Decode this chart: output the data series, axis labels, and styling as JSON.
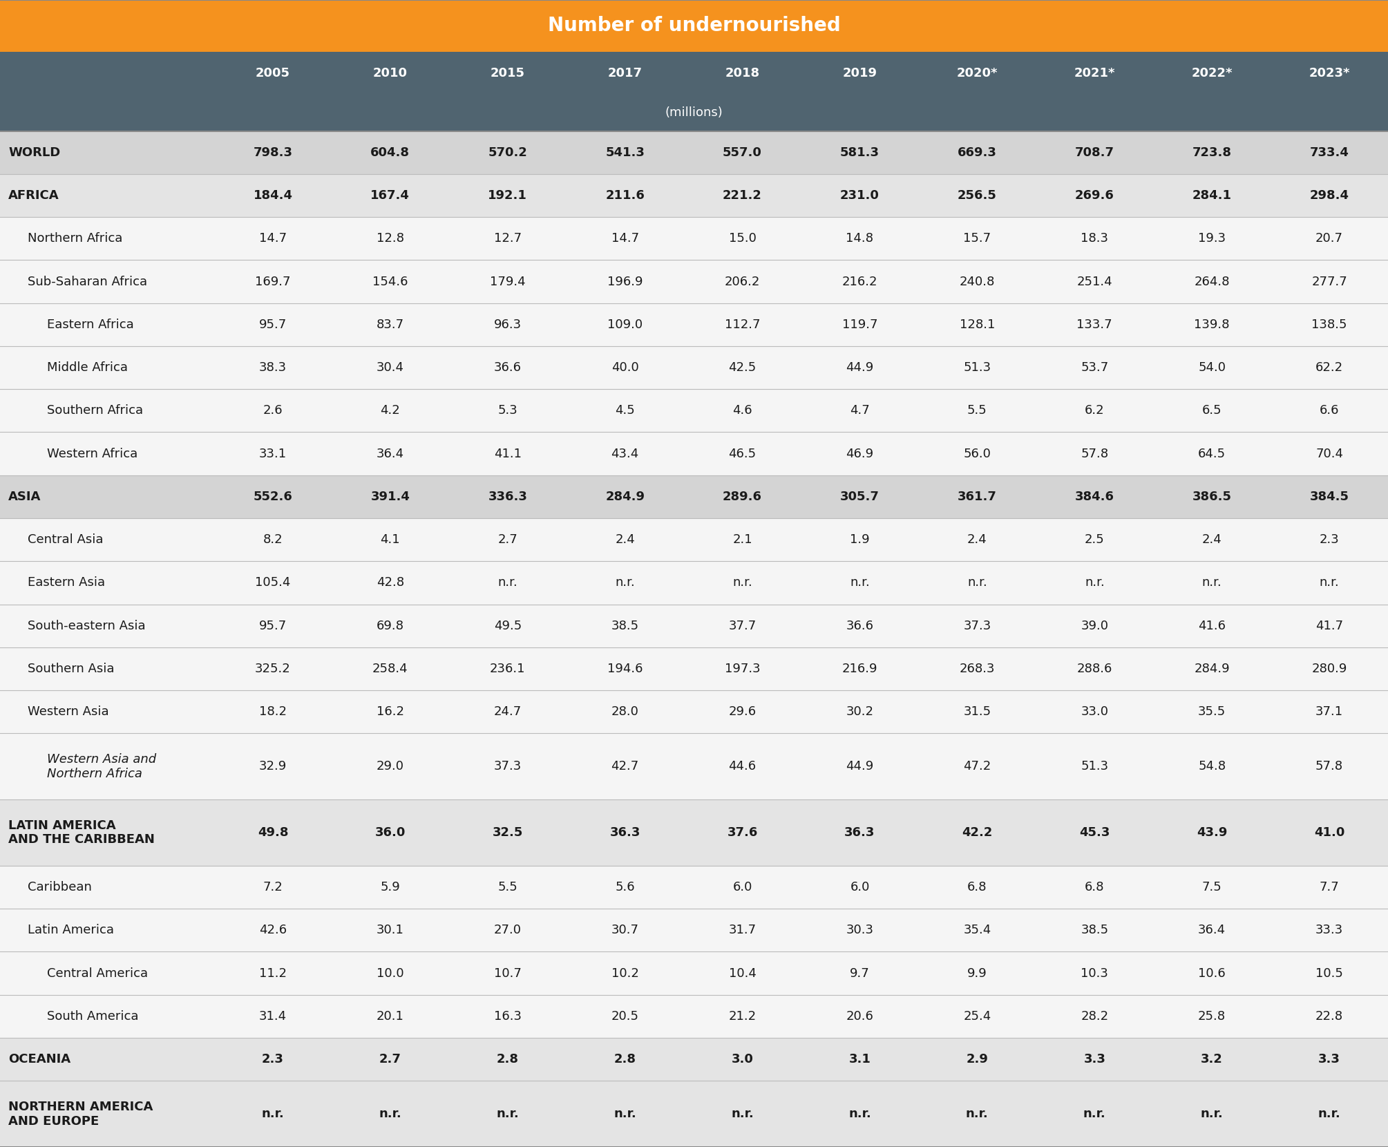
{
  "title": "Number of undernourished",
  "title_bg": "#F5921E",
  "title_color": "#FFFFFF",
  "header_bg": "#506470",
  "header_color": "#FFFFFF",
  "years": [
    "2005",
    "2010",
    "2015",
    "2017",
    "2018",
    "2019",
    "2020*",
    "2021*",
    "2022*",
    "2023*"
  ],
  "units_label": "(millions)",
  "rows": [
    {
      "label": "WORLD",
      "indent": 0,
      "bold": true,
      "italic": false,
      "row_bg": "#D4D4D4",
      "values": [
        "798.3",
        "604.8",
        "570.2",
        "541.3",
        "557.0",
        "581.3",
        "669.3",
        "708.7",
        "723.8",
        "733.4"
      ]
    },
    {
      "label": "AFRICA",
      "indent": 0,
      "bold": true,
      "italic": false,
      "row_bg": "#E4E4E4",
      "values": [
        "184.4",
        "167.4",
        "192.1",
        "211.6",
        "221.2",
        "231.0",
        "256.5",
        "269.6",
        "284.1",
        "298.4"
      ]
    },
    {
      "label": "Northern Africa",
      "indent": 1,
      "bold": false,
      "italic": false,
      "row_bg": "#F5F5F5",
      "values": [
        "14.7",
        "12.8",
        "12.7",
        "14.7",
        "15.0",
        "14.8",
        "15.7",
        "18.3",
        "19.3",
        "20.7"
      ]
    },
    {
      "label": "Sub-Saharan Africa",
      "indent": 1,
      "bold": false,
      "italic": false,
      "row_bg": "#F5F5F5",
      "values": [
        "169.7",
        "154.6",
        "179.4",
        "196.9",
        "206.2",
        "216.2",
        "240.8",
        "251.4",
        "264.8",
        "277.7"
      ]
    },
    {
      "label": "Eastern Africa",
      "indent": 2,
      "bold": false,
      "italic": false,
      "row_bg": "#F5F5F5",
      "values": [
        "95.7",
        "83.7",
        "96.3",
        "109.0",
        "112.7",
        "119.7",
        "128.1",
        "133.7",
        "139.8",
        "138.5"
      ]
    },
    {
      "label": "Middle Africa",
      "indent": 2,
      "bold": false,
      "italic": false,
      "row_bg": "#F5F5F5",
      "values": [
        "38.3",
        "30.4",
        "36.6",
        "40.0",
        "42.5",
        "44.9",
        "51.3",
        "53.7",
        "54.0",
        "62.2"
      ]
    },
    {
      "label": "Southern Africa",
      "indent": 2,
      "bold": false,
      "italic": false,
      "row_bg": "#F5F5F5",
      "values": [
        "2.6",
        "4.2",
        "5.3",
        "4.5",
        "4.6",
        "4.7",
        "5.5",
        "6.2",
        "6.5",
        "6.6"
      ]
    },
    {
      "label": "Western Africa",
      "indent": 2,
      "bold": false,
      "italic": false,
      "row_bg": "#F5F5F5",
      "values": [
        "33.1",
        "36.4",
        "41.1",
        "43.4",
        "46.5",
        "46.9",
        "56.0",
        "57.8",
        "64.5",
        "70.4"
      ]
    },
    {
      "label": "ASIA",
      "indent": 0,
      "bold": true,
      "italic": false,
      "row_bg": "#D4D4D4",
      "values": [
        "552.6",
        "391.4",
        "336.3",
        "284.9",
        "289.6",
        "305.7",
        "361.7",
        "384.6",
        "386.5",
        "384.5"
      ]
    },
    {
      "label": "Central Asia",
      "indent": 1,
      "bold": false,
      "italic": false,
      "row_bg": "#F5F5F5",
      "values": [
        "8.2",
        "4.1",
        "2.7",
        "2.4",
        "2.1",
        "1.9",
        "2.4",
        "2.5",
        "2.4",
        "2.3"
      ]
    },
    {
      "label": "Eastern Asia",
      "indent": 1,
      "bold": false,
      "italic": false,
      "row_bg": "#F5F5F5",
      "values": [
        "105.4",
        "42.8",
        "n.r.",
        "n.r.",
        "n.r.",
        "n.r.",
        "n.r.",
        "n.r.",
        "n.r.",
        "n.r."
      ]
    },
    {
      "label": "South-eastern Asia",
      "indent": 1,
      "bold": false,
      "italic": false,
      "row_bg": "#F5F5F5",
      "values": [
        "95.7",
        "69.8",
        "49.5",
        "38.5",
        "37.7",
        "36.6",
        "37.3",
        "39.0",
        "41.6",
        "41.7"
      ]
    },
    {
      "label": "Southern Asia",
      "indent": 1,
      "bold": false,
      "italic": false,
      "row_bg": "#F5F5F5",
      "values": [
        "325.2",
        "258.4",
        "236.1",
        "194.6",
        "197.3",
        "216.9",
        "268.3",
        "288.6",
        "284.9",
        "280.9"
      ]
    },
    {
      "label": "Western Asia",
      "indent": 1,
      "bold": false,
      "italic": false,
      "row_bg": "#F5F5F5",
      "values": [
        "18.2",
        "16.2",
        "24.7",
        "28.0",
        "29.6",
        "30.2",
        "31.5",
        "33.0",
        "35.5",
        "37.1"
      ]
    },
    {
      "label": "Western Asia and\nNorthern Africa",
      "indent": 2,
      "bold": false,
      "italic": true,
      "row_bg": "#F5F5F5",
      "double_line": true,
      "values": [
        "32.9",
        "29.0",
        "37.3",
        "42.7",
        "44.6",
        "44.9",
        "47.2",
        "51.3",
        "54.8",
        "57.8"
      ]
    },
    {
      "label": "LATIN AMERICA\nAND THE CARIBBEAN",
      "indent": 0,
      "bold": true,
      "italic": false,
      "row_bg": "#E4E4E4",
      "double_line": true,
      "values": [
        "49.8",
        "36.0",
        "32.5",
        "36.3",
        "37.6",
        "36.3",
        "42.2",
        "45.3",
        "43.9",
        "41.0"
      ]
    },
    {
      "label": "Caribbean",
      "indent": 1,
      "bold": false,
      "italic": false,
      "row_bg": "#F5F5F5",
      "values": [
        "7.2",
        "5.9",
        "5.5",
        "5.6",
        "6.0",
        "6.0",
        "6.8",
        "6.8",
        "7.5",
        "7.7"
      ]
    },
    {
      "label": "Latin America",
      "indent": 1,
      "bold": false,
      "italic": false,
      "row_bg": "#F5F5F5",
      "values": [
        "42.6",
        "30.1",
        "27.0",
        "30.7",
        "31.7",
        "30.3",
        "35.4",
        "38.5",
        "36.4",
        "33.3"
      ]
    },
    {
      "label": "Central America",
      "indent": 2,
      "bold": false,
      "italic": false,
      "row_bg": "#F5F5F5",
      "values": [
        "11.2",
        "10.0",
        "10.7",
        "10.2",
        "10.4",
        "9.7",
        "9.9",
        "10.3",
        "10.6",
        "10.5"
      ]
    },
    {
      "label": "South America",
      "indent": 2,
      "bold": false,
      "italic": false,
      "row_bg": "#F5F5F5",
      "values": [
        "31.4",
        "20.1",
        "16.3",
        "20.5",
        "21.2",
        "20.6",
        "25.4",
        "28.2",
        "25.8",
        "22.8"
      ]
    },
    {
      "label": "OCEANIA",
      "indent": 0,
      "bold": true,
      "italic": false,
      "row_bg": "#E4E4E4",
      "values": [
        "2.3",
        "2.7",
        "2.8",
        "2.8",
        "3.0",
        "3.1",
        "2.9",
        "3.3",
        "3.2",
        "3.3"
      ]
    },
    {
      "label": "NORTHERN AMERICA\nAND EUROPE",
      "indent": 0,
      "bold": true,
      "italic": false,
      "row_bg": "#E4E4E4",
      "double_line": true,
      "values": [
        "n.r.",
        "n.r.",
        "n.r.",
        "n.r.",
        "n.r.",
        "n.r.",
        "n.r.",
        "n.r.",
        "n.r.",
        "n.r."
      ]
    }
  ],
  "body_text_color": "#1A1A1A",
  "divider_color": "#BBBBBB",
  "fig_bg": "#FFFFFF"
}
